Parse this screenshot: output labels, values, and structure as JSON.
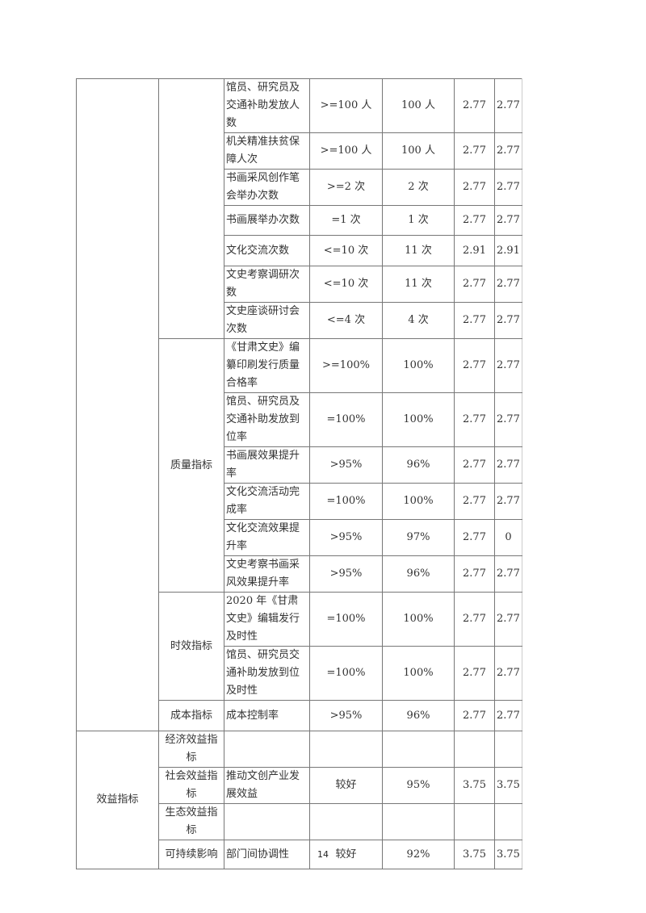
{
  "level1": {
    "benefit": "效益指标"
  },
  "level2": {
    "quality": "质量指标",
    "timeliness": "时效指标",
    "cost": "成本指标",
    "economic": "经济效益指标",
    "social": "社会效益指标",
    "ecological": "生态效益指标",
    "sustainable": "可持续影响"
  },
  "rows": [
    {
      "indicator": "馆员、研究员及交通补助发放人数",
      "target": ">=100 人",
      "actual": "100 人",
      "weight": "2.77",
      "score": "2.77"
    },
    {
      "indicator": "机关精准扶贫保障人次",
      "target": ">=100 人",
      "actual": "100 人",
      "weight": "2.77",
      "score": "2.77"
    },
    {
      "indicator": "书画采风创作笔会举办次数",
      "target": ">=2 次",
      "actual": "2 次",
      "weight": "2.77",
      "score": "2.77"
    },
    {
      "indicator": "书画展举办次数",
      "target": "=1 次",
      "actual": "1 次",
      "weight": "2.77",
      "score": "2.77"
    },
    {
      "indicator": "文化交流次数",
      "target": "<=10 次",
      "actual": "11 次",
      "weight": "2.91",
      "score": "2.91"
    },
    {
      "indicator": "文史考察调研次数",
      "target": "<=10 次",
      "actual": "11 次",
      "weight": "2.77",
      "score": "2.77"
    },
    {
      "indicator": "文史座谈研讨会次数",
      "target": "<=4 次",
      "actual": "4 次",
      "weight": "2.77",
      "score": "2.77"
    },
    {
      "indicator": "《甘肃文史》编纂印刷发行质量合格率",
      "target": ">=100%",
      "actual": "100%",
      "weight": "2.77",
      "score": "2.77"
    },
    {
      "indicator": "馆员、研究员及交通补助发放到位率",
      "target": "=100%",
      "actual": "100%",
      "weight": "2.77",
      "score": "2.77"
    },
    {
      "indicator": "书画展效果提升率",
      "target": ">95%",
      "actual": "96%",
      "weight": "2.77",
      "score": "2.77"
    },
    {
      "indicator": "文化交流活动完成率",
      "target": "=100%",
      "actual": "100%",
      "weight": "2.77",
      "score": "2.77"
    },
    {
      "indicator": "文化交流效果提升率",
      "target": ">95%",
      "actual": "97%",
      "weight": "2.77",
      "score": "0"
    },
    {
      "indicator": "文史考察书画采风效果提升率",
      "target": ">95%",
      "actual": "96%",
      "weight": "2.77",
      "score": "2.77"
    },
    {
      "indicator": "2020 年《甘肃文史》编辑发行及时性",
      "target": "=100%",
      "actual": "100%",
      "weight": "2.77",
      "score": "2.77"
    },
    {
      "indicator": "馆员、研究员交通补助发放到位及时性",
      "target": "=100%",
      "actual": "100%",
      "weight": "2.77",
      "score": "2.77"
    },
    {
      "indicator": "成本控制率",
      "target": ">95%",
      "actual": "96%",
      "weight": "2.77",
      "score": "2.77"
    },
    {
      "indicator": "",
      "target": "",
      "actual": "",
      "weight": "",
      "score": ""
    },
    {
      "indicator": "推动文创产业发展效益",
      "target": "较好",
      "actual": "95%",
      "weight": "3.75",
      "score": "3.75"
    },
    {
      "indicator": "",
      "target": "",
      "actual": "",
      "weight": "",
      "score": ""
    },
    {
      "indicator": "部门间协调性",
      "target": "较好",
      "actual": "92%",
      "weight": "3.75",
      "score": "3.75"
    }
  ],
  "page_number": "14"
}
